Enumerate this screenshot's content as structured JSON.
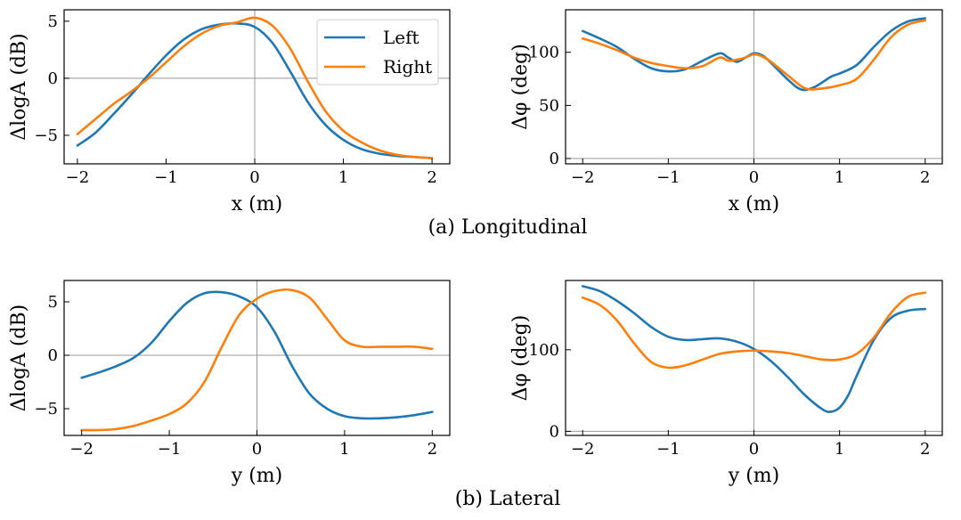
{
  "colors": {
    "left": "#1f77b4",
    "right": "#ff7f0e",
    "axis": "#000000",
    "crosshair": "#999999"
  },
  "captions": [
    "(a) Longitudinal",
    "(b) Lateral"
  ],
  "chart_data": [
    {
      "type": "line",
      "panel": "a-left",
      "xlabel": "x (m)",
      "ylabel": "ΔlogA (dB)",
      "xlim": [
        -2.15,
        2.2
      ],
      "ylim": [
        -7.5,
        6.0
      ],
      "xticks": [
        -2,
        -1,
        0,
        1,
        2
      ],
      "xtick_labels": [
        "−2",
        "−1",
        "0",
        "1",
        "2"
      ],
      "yticks": [
        -5,
        0,
        5
      ],
      "ytick_labels": [
        "−5",
        "0",
        "5"
      ],
      "legend": {
        "entries": [
          "Left",
          "Right"
        ],
        "placement": "top-right"
      },
      "series": [
        {
          "name": "Left",
          "x": [
            -2,
            -1.8,
            -1.6,
            -1.4,
            -1.2,
            -1.0,
            -0.8,
            -0.6,
            -0.4,
            -0.2,
            0,
            0.2,
            0.4,
            0.6,
            0.8,
            1.0,
            1.2,
            1.4,
            1.6,
            1.8,
            2.0
          ],
          "values": [
            -5.9,
            -4.8,
            -3.2,
            -1.5,
            0.3,
            2.0,
            3.4,
            4.3,
            4.7,
            4.8,
            4.5,
            3.1,
            0.6,
            -2.1,
            -4.1,
            -5.4,
            -6.2,
            -6.6,
            -6.8,
            -6.9,
            -7.0
          ]
        },
        {
          "name": "Right",
          "x": [
            -2,
            -1.8,
            -1.6,
            -1.4,
            -1.2,
            -1.0,
            -0.8,
            -0.6,
            -0.4,
            -0.2,
            0,
            0.2,
            0.4,
            0.6,
            0.8,
            1.0,
            1.2,
            1.4,
            1.6,
            1.8,
            2.0
          ],
          "values": [
            -4.9,
            -3.6,
            -2.3,
            -1.2,
            0.0,
            1.4,
            2.8,
            3.9,
            4.6,
            4.9,
            5.3,
            4.6,
            2.6,
            -0.3,
            -2.9,
            -4.6,
            -5.6,
            -6.3,
            -6.7,
            -6.9,
            -7.0
          ]
        }
      ]
    },
    {
      "type": "line",
      "panel": "a-right",
      "xlabel": "x (m)",
      "ylabel": "Δφ (deg)",
      "xlim": [
        -2.2,
        2.2
      ],
      "ylim": [
        -5,
        140
      ],
      "xticks": [
        -2,
        -1,
        0,
        1,
        2
      ],
      "xtick_labels": [
        "−2",
        "−1",
        "0",
        "1",
        "2"
      ],
      "yticks": [
        0,
        50,
        100
      ],
      "ytick_labels": [
        "0",
        "50",
        "100"
      ],
      "series": [
        {
          "name": "Left",
          "x": [
            -2,
            -1.8,
            -1.6,
            -1.4,
            -1.2,
            -1.0,
            -0.8,
            -0.6,
            -0.4,
            -0.3,
            -0.2,
            -0.1,
            0,
            0.1,
            0.2,
            0.4,
            0.55,
            0.7,
            0.9,
            1.0,
            1.2,
            1.4,
            1.6,
            1.8,
            2.0
          ],
          "values": [
            120,
            113,
            105,
            94,
            85,
            82,
            84,
            92,
            99,
            95,
            91,
            95,
            99,
            97,
            90,
            74,
            65,
            67,
            77,
            80,
            88,
            105,
            120,
            129,
            132
          ]
        },
        {
          "name": "Right",
          "x": [
            -2,
            -1.8,
            -1.6,
            -1.4,
            -1.2,
            -1.0,
            -0.8,
            -0.6,
            -0.4,
            -0.3,
            -0.2,
            -0.1,
            0,
            0.1,
            0.2,
            0.4,
            0.6,
            0.8,
            1.0,
            1.2,
            1.4,
            1.6,
            1.8,
            2.0
          ],
          "values": [
            113,
            108,
            102,
            95,
            90,
            87,
            85,
            87,
            95,
            92,
            93,
            95,
            98,
            96,
            91,
            78,
            66,
            66,
            69,
            75,
            93,
            114,
            126,
            130
          ]
        }
      ]
    },
    {
      "type": "line",
      "panel": "b-left",
      "xlabel": "y (m)",
      "ylabel": "ΔlogA (dB)",
      "xlim": [
        -2.2,
        2.2
      ],
      "ylim": [
        -7.5,
        7.0
      ],
      "xticks": [
        -2,
        -1,
        0,
        1,
        2
      ],
      "xtick_labels": [
        "−2",
        "−1",
        "0",
        "1",
        "2"
      ],
      "yticks": [
        -5,
        0,
        5
      ],
      "ytick_labels": [
        "−5",
        "0",
        "5"
      ],
      "series": [
        {
          "name": "Left",
          "x": [
            -2,
            -1.8,
            -1.6,
            -1.4,
            -1.2,
            -1.0,
            -0.8,
            -0.6,
            -0.4,
            -0.2,
            0,
            0.2,
            0.4,
            0.6,
            0.8,
            1.0,
            1.2,
            1.4,
            1.6,
            1.8,
            2.0
          ],
          "values": [
            -2.1,
            -1.6,
            -1.0,
            -0.2,
            1.2,
            3.2,
            4.9,
            5.8,
            5.9,
            5.5,
            4.5,
            2.2,
            -1.0,
            -3.6,
            -5.0,
            -5.7,
            -5.9,
            -5.9,
            -5.8,
            -5.6,
            -5.3
          ]
        },
        {
          "name": "Right",
          "x": [
            -2,
            -1.8,
            -1.6,
            -1.4,
            -1.2,
            -1.0,
            -0.8,
            -0.6,
            -0.4,
            -0.2,
            0,
            0.2,
            0.4,
            0.6,
            0.8,
            1.0,
            1.2,
            1.4,
            1.6,
            1.8,
            2.0
          ],
          "values": [
            -7.0,
            -7.0,
            -6.9,
            -6.6,
            -6.1,
            -5.5,
            -4.5,
            -2.5,
            0.8,
            3.8,
            5.3,
            6.0,
            6.1,
            5.4,
            3.4,
            1.4,
            0.8,
            0.8,
            0.8,
            0.8,
            0.6
          ]
        }
      ]
    },
    {
      "type": "line",
      "panel": "b-right",
      "xlabel": "y (m)",
      "ylabel": "Δφ (deg)",
      "xlim": [
        -2.2,
        2.2
      ],
      "ylim": [
        -5,
        185
      ],
      "xticks": [
        -2,
        -1,
        0,
        1,
        2
      ],
      "xtick_labels": [
        "−2",
        "−1",
        "0",
        "1",
        "2"
      ],
      "yticks": [
        0,
        100
      ],
      "ytick_labels": [
        "0",
        "100"
      ],
      "series": [
        {
          "name": "Left",
          "x": [
            -2,
            -1.8,
            -1.6,
            -1.4,
            -1.2,
            -1.0,
            -0.8,
            -0.6,
            -0.4,
            -0.2,
            0,
            0.2,
            0.4,
            0.6,
            0.8,
            0.9,
            1.0,
            1.1,
            1.2,
            1.4,
            1.6,
            1.8,
            2.0
          ],
          "values": [
            178,
            172,
            160,
            145,
            128,
            116,
            112,
            113,
            114,
            110,
            101,
            86,
            66,
            44,
            27,
            24,
            29,
            44,
            68,
            112,
            139,
            148,
            150
          ]
        },
        {
          "name": "Right",
          "x": [
            -2,
            -1.8,
            -1.6,
            -1.4,
            -1.2,
            -1.0,
            -0.8,
            -0.6,
            -0.4,
            -0.2,
            0,
            0.2,
            0.4,
            0.6,
            0.8,
            1.0,
            1.2,
            1.4,
            1.6,
            1.8,
            2.0
          ],
          "values": [
            164,
            155,
            136,
            108,
            85,
            78,
            81,
            88,
            95,
            98,
            99,
            98,
            96,
            92,
            88,
            88,
            95,
            115,
            145,
            165,
            170
          ]
        }
      ]
    }
  ]
}
